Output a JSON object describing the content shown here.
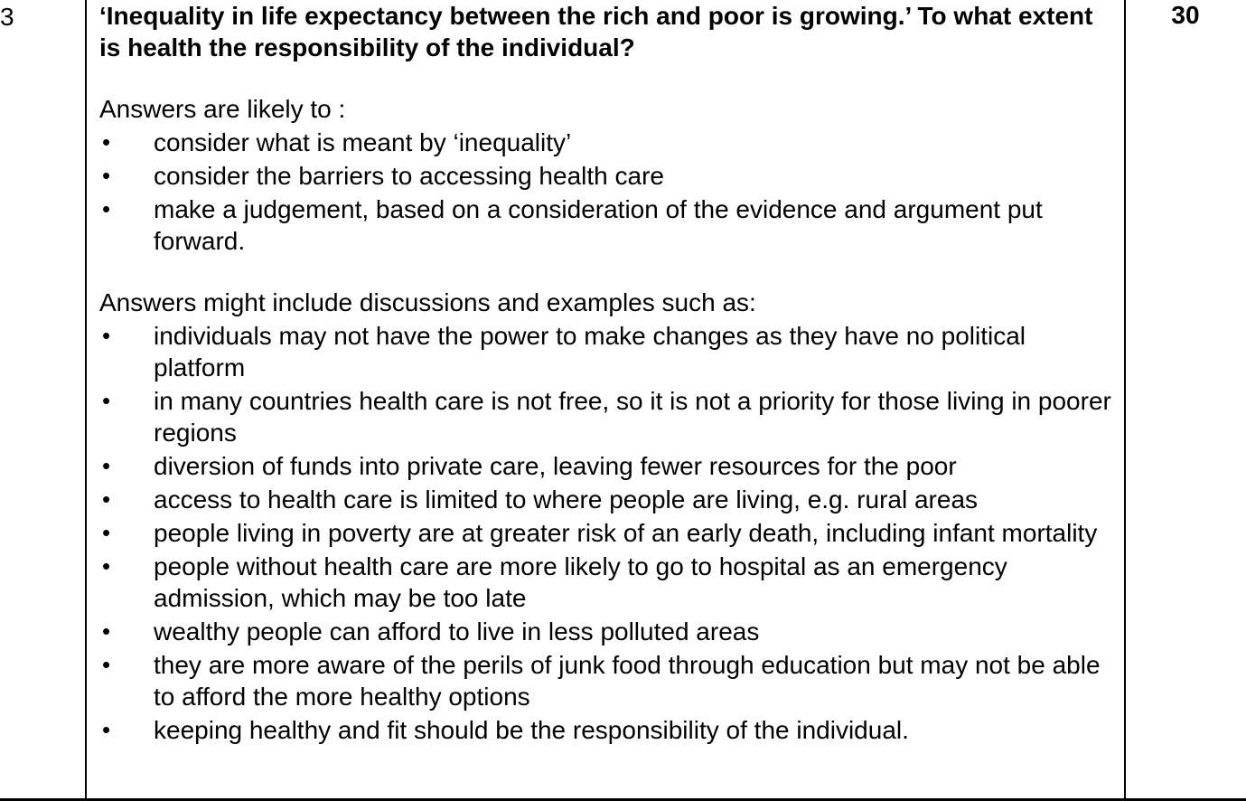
{
  "question_number": "3",
  "marks": "30",
  "question": "‘Inequality in life expectancy between the rich and poor is growing.’ To what extent is health the responsibility of the individual?",
  "likely_intro": "Answers are likely to :",
  "likely_items": [
    "consider what is meant by ‘inequality’",
    "consider the barriers to accessing health care",
    "make a judgement, based on a consideration of the evidence and argument put forward."
  ],
  "include_intro": "Answers might include discussions and examples such as:",
  "include_items": [
    "individuals may not have the power to make changes as they have no political platform",
    "in many countries health care is not free, so it is not a priority for those living in poorer regions",
    "diversion of funds into private care, leaving fewer resources for the poor",
    "access to health care is limited to where people are living, e.g. rural areas",
    "people living in poverty are at greater risk of an early death, including infant mortality",
    "people without health care are more likely to go to hospital as an emergency admission, which may be too late",
    "wealthy people can afford to live in less polluted areas",
    "they are more aware of the perils of junk food through education but may not be able to afford the more healthy options",
    "keeping healthy and fit should be the responsibility of the individual."
  ],
  "bullet_glyph": "•"
}
